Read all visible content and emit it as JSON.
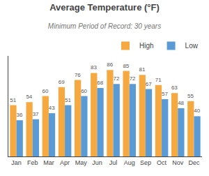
{
  "chart_data": {
    "type": "bar",
    "title": "Average Temperature (°F)",
    "subtitle": "Minimum Period of Record: 30 years",
    "categories": [
      "Jan",
      "Feb",
      "Mar",
      "Apr",
      "May",
      "Jun",
      "Jul",
      "Aug",
      "Sep",
      "Oct",
      "Nov",
      "Dec"
    ],
    "series": [
      {
        "name": "High",
        "color": "#F5A940",
        "values": [
          51,
          54,
          60,
          69,
          76,
          83,
          86,
          85,
          81,
          71,
          63,
          55
        ]
      },
      {
        "name": "Low",
        "color": "#5B9BD5",
        "values": [
          36,
          37,
          43,
          51,
          60,
          68,
          72,
          72,
          67,
          57,
          48,
          40
        ]
      }
    ],
    "ylim": [
      0,
      100
    ],
    "grid": false,
    "legend": "upper right",
    "data_labels": true,
    "tick_labels": "x"
  }
}
